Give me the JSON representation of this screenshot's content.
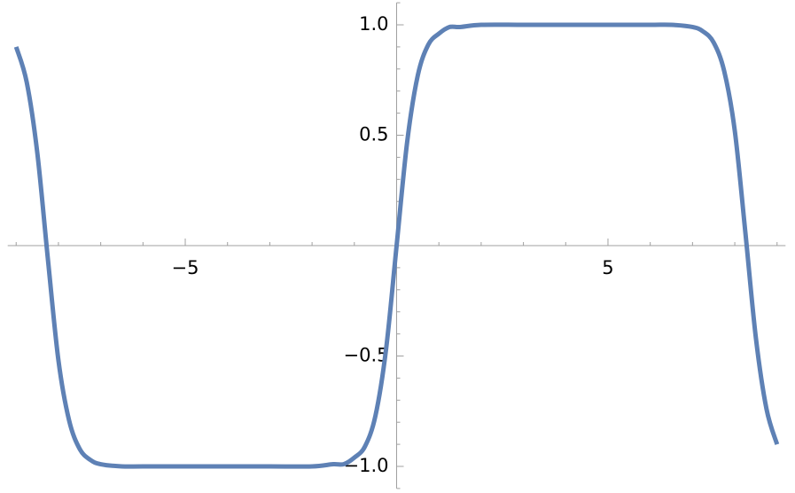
{
  "chart_data": {
    "type": "line",
    "x": [
      -9,
      -8.75,
      -8.5,
      -8.25,
      -8,
      -7.75,
      -7.5,
      -7.25,
      -7,
      -6.5,
      -6,
      -5,
      -4,
      -3,
      -2,
      -1.5,
      -1.25,
      -1,
      -0.75,
      -0.5,
      -0.25,
      0,
      0.25,
      0.5,
      0.75,
      1,
      1.25,
      1.5,
      2,
      3,
      4,
      5,
      6,
      6.5,
      7,
      7.25,
      7.5,
      7.75,
      8,
      8.25,
      8.5,
      8.75,
      9
    ],
    "series": [
      {
        "color": "#5e81b5",
        "values": [
          0.9,
          0.74,
          0.42,
          -0.06,
          -0.52,
          -0.79,
          -0.92,
          -0.97,
          -0.99,
          -1,
          -1,
          -1,
          -1,
          -1,
          -1,
          -0.99,
          -0.99,
          -0.96,
          -0.91,
          -0.77,
          -0.47,
          0,
          0.47,
          0.77,
          0.91,
          0.96,
          0.99,
          0.99,
          1,
          1,
          1,
          1,
          1,
          1,
          0.99,
          0.97,
          0.92,
          0.79,
          0.52,
          0.06,
          -0.42,
          -0.74,
          -0.9
        ]
      }
    ],
    "xlim": [
      -9.2,
      9.2
    ],
    "ylim": [
      -1.1,
      1.1
    ],
    "xticks": [
      {
        "value": -5,
        "label": "−5"
      },
      5
    ],
    "yticks": [
      {
        "value": -1,
        "label": "−1.0"
      },
      {
        "value": -0.5,
        "label": "−0.5"
      },
      {
        "value": 0.5,
        "label": "0.5"
      },
      {
        "value": 1,
        "label": "1.0"
      }
    ],
    "xminorticks": [
      -9,
      -8,
      -7,
      -6,
      -4,
      -3,
      -2,
      -1,
      1,
      2,
      3,
      4,
      6,
      7,
      8,
      9
    ],
    "yminorticks": [
      -1.1,
      -0.9,
      -0.8,
      -0.7,
      -0.6,
      -0.4,
      -0.3,
      -0.2,
      -0.1,
      0.1,
      0.2,
      0.3,
      0.4,
      0.6,
      0.7,
      0.8,
      0.9,
      1.1
    ]
  }
}
